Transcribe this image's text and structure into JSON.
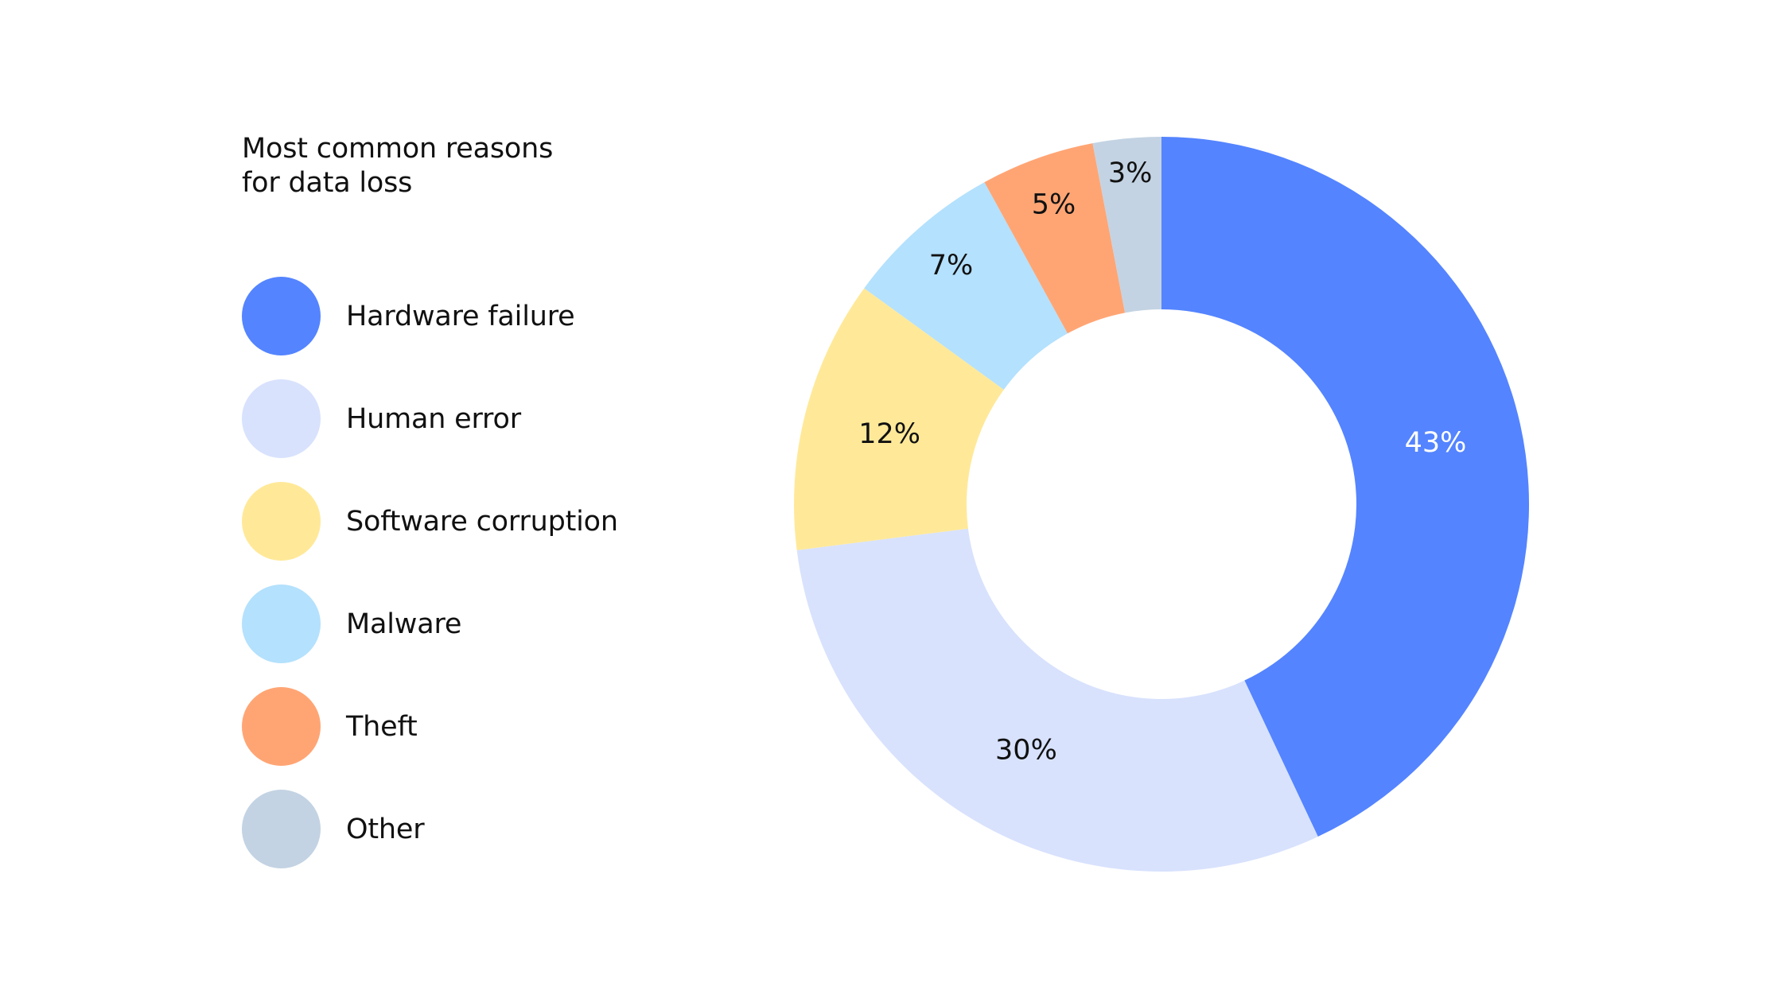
{
  "chart_data": {
    "type": "pie",
    "donut": true,
    "title": [
      "Most common reasons",
      "for data loss"
    ],
    "legend_position": "left",
    "slices": [
      {
        "label": "Hardware failure",
        "value": 43,
        "value_label": "43%",
        "color": "#5484FF",
        "text_color": "#FFFFFF"
      },
      {
        "label": "Human error",
        "value": 30,
        "value_label": "30%",
        "color": "#D8E2FD",
        "text_color": "#111111"
      },
      {
        "label": "Software corruption",
        "value": 12,
        "value_label": "12%",
        "color": "#FFE999",
        "text_color": "#111111"
      },
      {
        "label": "Malware",
        "value": 7,
        "value_label": "7%",
        "color": "#B4E1FD",
        "text_color": "#111111"
      },
      {
        "label": "Theft",
        "value": 5,
        "value_label": "5%",
        "color": "#FFA574",
        "text_color": "#111111"
      },
      {
        "label": "Other",
        "value": 3,
        "value_label": "3%",
        "color": "#C3D3E3",
        "text_color": "#111111"
      }
    ]
  }
}
